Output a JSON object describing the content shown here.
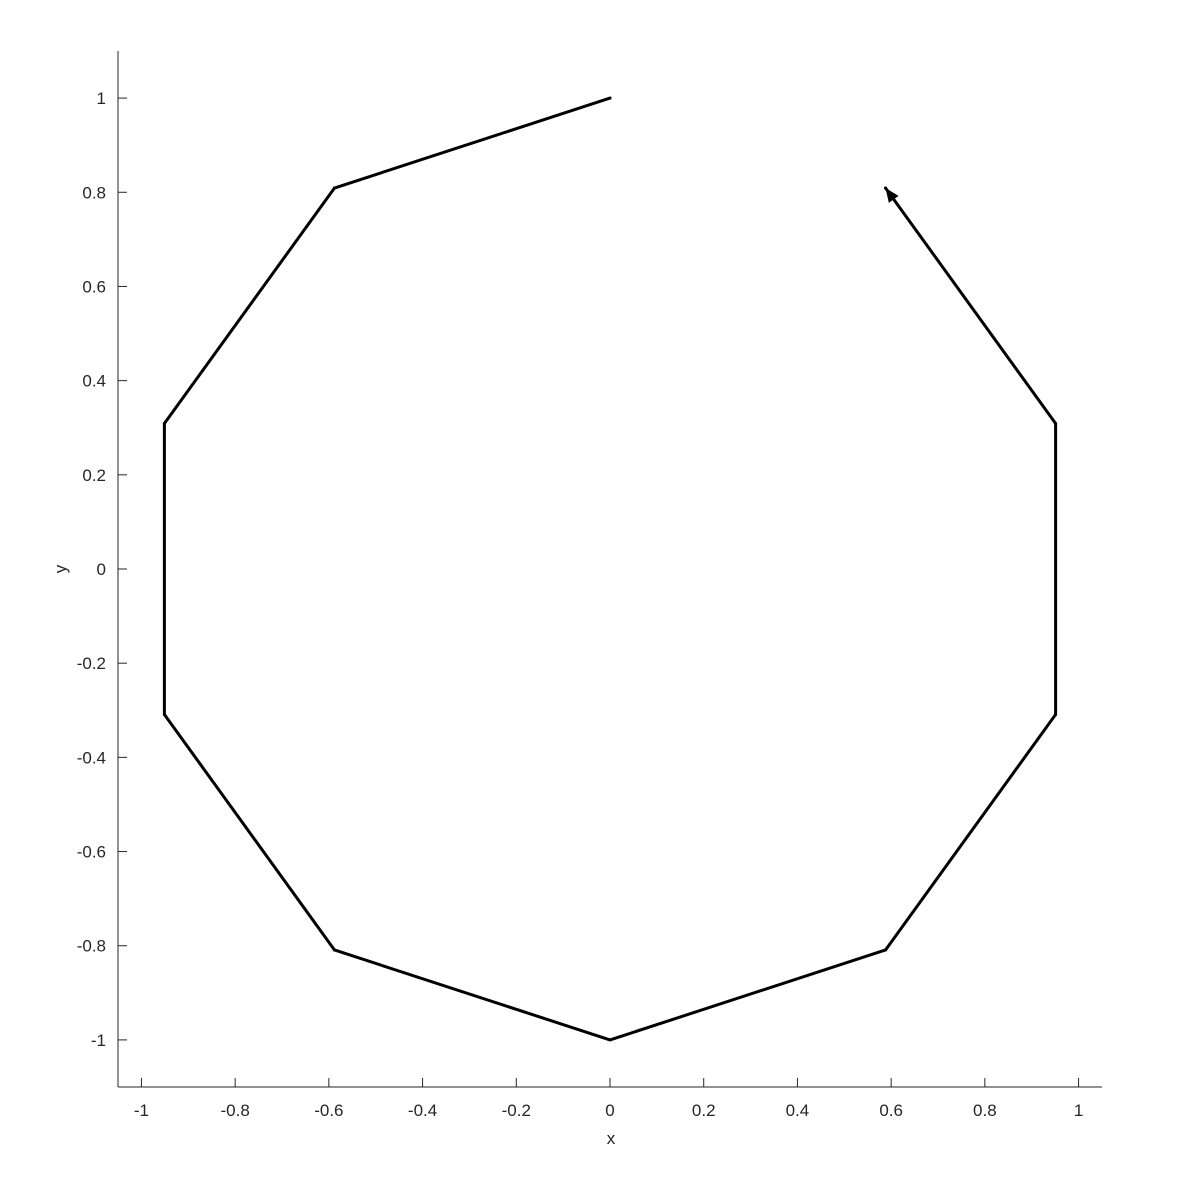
{
  "chart_data": {
    "type": "line",
    "title": "",
    "xlabel": "x",
    "ylabel": "y",
    "xlim": [
      -1.05,
      1.05
    ],
    "ylim": [
      -1.1,
      1.1
    ],
    "xticks": [
      -1,
      -0.8,
      -0.6,
      -0.4,
      -0.2,
      0,
      0.2,
      0.4,
      0.6,
      0.8,
      1
    ],
    "xtick_labels": [
      "-1",
      "-0.8",
      "-0.6",
      "-0.4",
      "-0.2",
      "0",
      "0.2",
      "0.4",
      "0.6",
      "0.8",
      "1"
    ],
    "yticks": [
      -1,
      -0.8,
      -0.6,
      -0.4,
      -0.2,
      0,
      0.2,
      0.4,
      0.6,
      0.8,
      1
    ],
    "ytick_labels": [
      "-1",
      "-0.8",
      "-0.6",
      "-0.4",
      "-0.2",
      "0",
      "0.2",
      "0.4",
      "0.6",
      "0.8",
      "1"
    ],
    "grid": false,
    "line_color": "#000000",
    "end_marker": "arrow",
    "series": [
      {
        "x": [
          0,
          -0.588,
          -0.951,
          -0.951,
          -0.588,
          0,
          0.588,
          0.951,
          0.951,
          0.588
        ],
        "y": [
          1,
          0.809,
          0.309,
          -0.309,
          -0.809,
          -1,
          -0.809,
          -0.309,
          0.309,
          0.809
        ]
      }
    ]
  }
}
